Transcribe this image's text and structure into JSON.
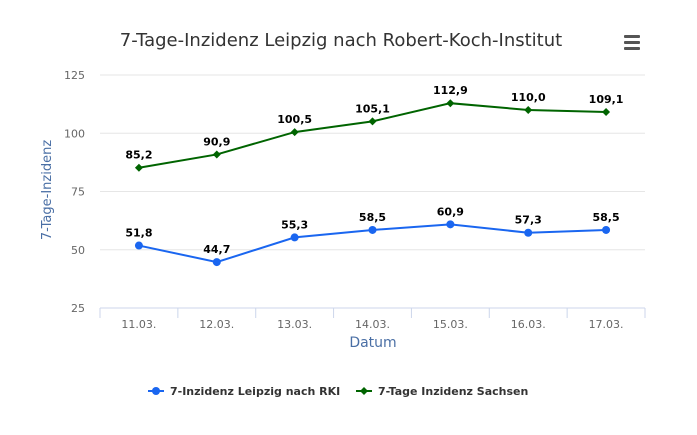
{
  "chart_data": {
    "type": "line",
    "title": "7-Tage-Inzidenz Leipzig nach Robert-Koch-Institut",
    "xlabel": "Datum",
    "ylabel": "7-Tage-Inzidenz",
    "categories": [
      "11.03.",
      "12.03.",
      "13.03.",
      "14.03.",
      "15.03.",
      "16.03.",
      "17.03."
    ],
    "ylim": [
      25,
      125
    ],
    "yticks": [
      25,
      50,
      75,
      100,
      125
    ],
    "grid": true,
    "legend_position": "bottom",
    "series": [
      {
        "name": "7-Inzidenz Leipzig nach RKI",
        "color": "#1a66f0",
        "marker": "circle",
        "values": [
          51.8,
          44.7,
          55.3,
          58.5,
          60.9,
          57.3,
          58.5
        ],
        "labels": [
          "51,8",
          "44,7",
          "55,3",
          "58,5",
          "60,9",
          "57,3",
          "58,5"
        ]
      },
      {
        "name": "7-Tage Inzidenz Sachsen",
        "color": "#006400",
        "marker": "diamond",
        "values": [
          85.2,
          90.9,
          100.5,
          105.1,
          112.9,
          110.0,
          109.1
        ],
        "labels": [
          "85,2",
          "90,9",
          "100,5",
          "105,1",
          "112,9",
          "110,0",
          "109,1"
        ]
      }
    ]
  },
  "menu": {
    "icon": "hamburger-menu-icon"
  }
}
